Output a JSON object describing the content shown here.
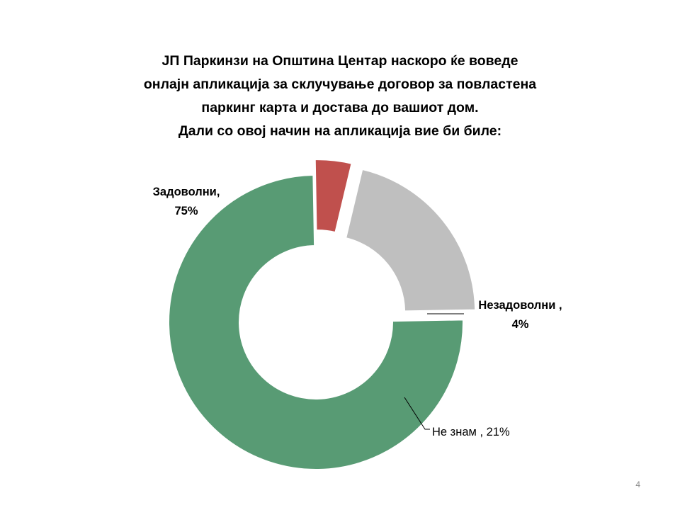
{
  "title_lines": [
    "ЈП Паркинзи на Општина Центар наскоро ќе воведе",
    "онлајн апликација за склучување договор за повластена",
    "паркинг карта и достава до вашиот дом.",
    "Дали со овој начин на апликација вие би биле:"
  ],
  "chart_data": {
    "type": "pie",
    "variant": "donut-exploded",
    "categories": [
      "Задоволни",
      "Незадоволни",
      "Не знам"
    ],
    "values": [
      75,
      4,
      21
    ],
    "unit": "%",
    "colors": [
      "#589b74",
      "#c0504d",
      "#bfbfbf"
    ],
    "data_labels": [
      {
        "name": "Задоволни,",
        "value": "75%"
      },
      {
        "name": "Незадоволни ,",
        "value": "4%"
      },
      {
        "text": "Не знам , 21%"
      }
    ],
    "legend": "none"
  },
  "page_number": "4"
}
